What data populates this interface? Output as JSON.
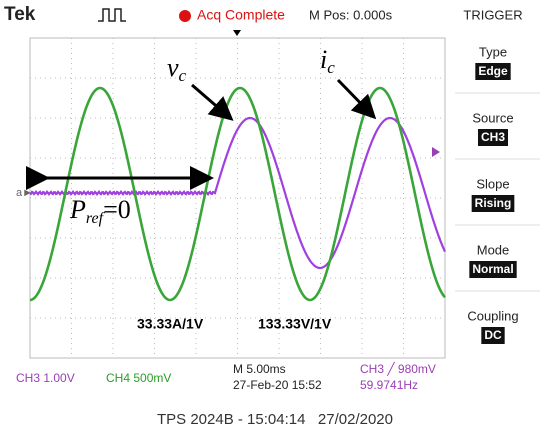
{
  "header": {
    "brand": "Tek",
    "status": "Acq Complete",
    "position": "M Pos: 0.000s",
    "menu_title": "TRIGGER"
  },
  "menu": [
    {
      "label": "Type",
      "value": "Edge"
    },
    {
      "label": "Source",
      "value": "CH3"
    },
    {
      "label": "Slope",
      "value": "Rising"
    },
    {
      "label": "Mode",
      "value": "Normal"
    },
    {
      "label": "Coupling",
      "value": "DC"
    }
  ],
  "annotations": {
    "vc": {
      "symbol": "v",
      "subscript": "c"
    },
    "ic": {
      "symbol": "i",
      "subscript": "c"
    },
    "pref": {
      "symbol": "P",
      "subscript": "ref",
      "equation": "=0"
    },
    "current_scale": "33.33A/1V",
    "voltage_scale": "133.33V/1V"
  },
  "status_bar": {
    "ch3": "CH3 1.00V",
    "ch4": "CH4 500mV",
    "timebase": "M 5.00ms",
    "date": "27-Feb-20 15:52",
    "trigger": "CH3 ╱ 980mV",
    "frequency": "59.9741Hz"
  },
  "caption": "TPS 2024B - 15:04:14   27/02/2020"
}
